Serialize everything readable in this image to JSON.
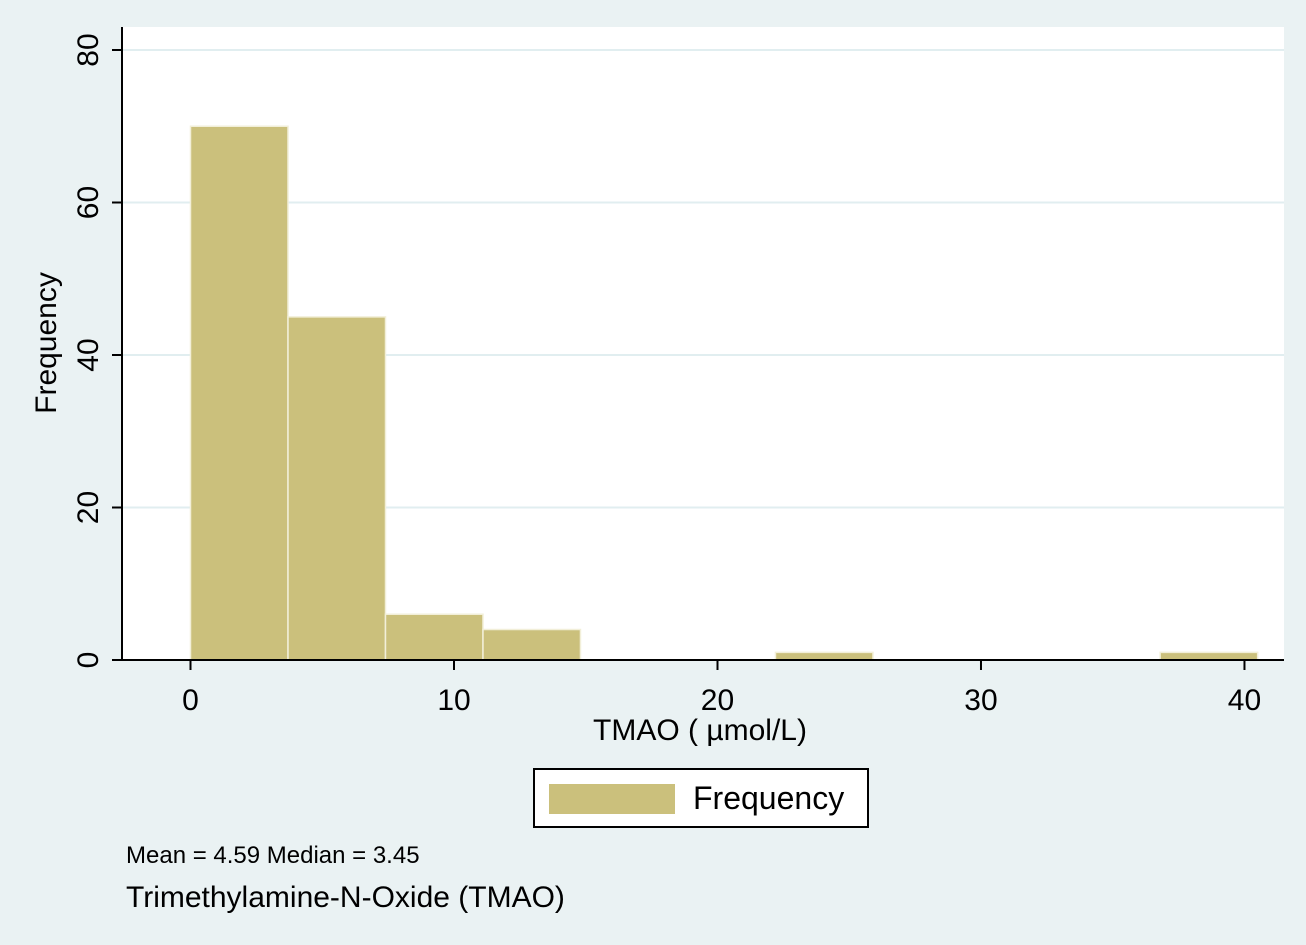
{
  "chart_data": {
    "type": "bar",
    "subtype": "histogram",
    "xlabel": "TMAO ( µmol/L)",
    "ylabel": "Frequency",
    "xlim": [
      -2.6,
      41.5
    ],
    "ylim": [
      0,
      80
    ],
    "xticks": [
      "0",
      "10",
      "20",
      "30",
      "40"
    ],
    "yticks": [
      "0",
      "20",
      "40",
      "60",
      "80"
    ],
    "grid": true,
    "legend_position": "bottom-center",
    "bins": [
      {
        "x0": 0.0,
        "x1": 3.7,
        "count": 70
      },
      {
        "x0": 3.7,
        "x1": 7.4,
        "count": 45
      },
      {
        "x0": 7.4,
        "x1": 11.1,
        "count": 6
      },
      {
        "x0": 11.1,
        "x1": 14.8,
        "count": 4
      },
      {
        "x0": 22.2,
        "x1": 25.9,
        "count": 1
      },
      {
        "x0": 36.8,
        "x1": 40.5,
        "count": 1
      }
    ],
    "series": [
      {
        "name": "Frequency",
        "color": "#cbc07c"
      }
    ],
    "note": "Mean = 4.59 Median = 3.45",
    "caption": "Trimethylamine-N-Oxide (TMAO)"
  },
  "colors": {
    "bar": "#cbc07c",
    "outer_background": "#eaf2f3",
    "plot_background": "#ffffff",
    "grid": "#e1eef0"
  }
}
